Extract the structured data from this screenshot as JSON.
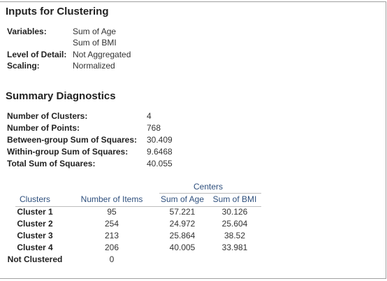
{
  "inputs": {
    "title": "Inputs for Clustering",
    "rows": [
      {
        "label": "Variables:",
        "values": [
          "Sum of Age",
          "Sum of BMI"
        ]
      },
      {
        "label": "Level of Detail:",
        "values": [
          "Not Aggregated"
        ]
      },
      {
        "label": "Scaling:",
        "values": [
          "Normalized"
        ]
      }
    ]
  },
  "diagnostics": {
    "title": "Summary Diagnostics",
    "rows": [
      [
        "Number of Clusters:",
        4
      ],
      [
        "Number of Points:",
        768
      ],
      [
        "Between-group Sum of Squares:",
        30.409
      ],
      [
        "Within-group Sum of Squares:",
        9.6468
      ],
      [
        "Total Sum of Squares:",
        40.055
      ]
    ]
  },
  "clusters": {
    "group_header": "Centers",
    "columns": [
      "Clusters",
      "Number of Items",
      "Sum of Age",
      "Sum of BMI"
    ],
    "rows": [
      [
        "Cluster 1",
        95,
        57.221,
        30.126
      ],
      [
        "Cluster 2",
        254,
        24.972,
        25.604
      ],
      [
        "Cluster 3",
        213,
        25.864,
        38.52
      ],
      [
        "Cluster 4",
        206,
        40.005,
        33.981
      ],
      [
        "Not Clustered",
        0
      ]
    ]
  }
}
